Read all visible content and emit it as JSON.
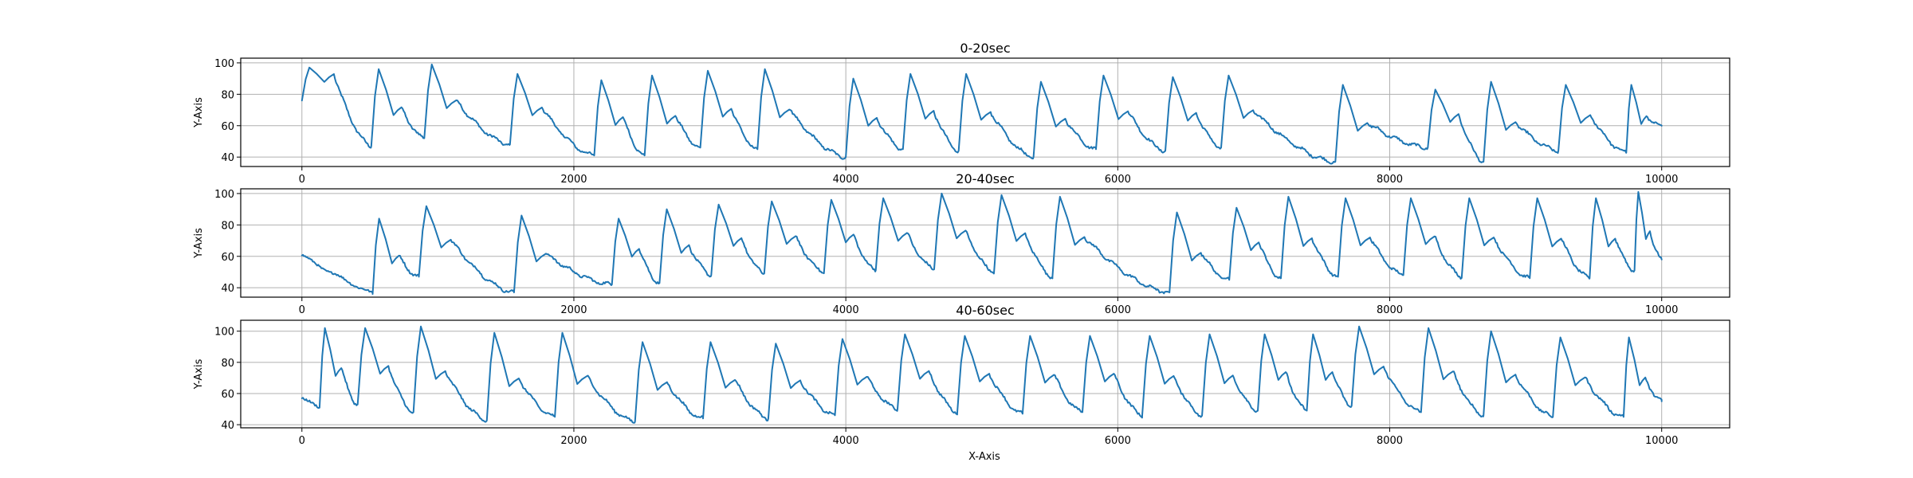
{
  "figure": {
    "xlabel": "X-Axis"
  },
  "colors": {
    "series": "#1f77b4",
    "grid": "#b0b0b0",
    "axes": "#000000"
  },
  "chart_data": [
    {
      "type": "line",
      "title": "0-20sec",
      "ylabel": "Y-Axis",
      "xlim": [
        -450,
        10500
      ],
      "ylim": [
        34,
        103
      ],
      "xticks": [
        0,
        2000,
        4000,
        6000,
        8000,
        10000
      ],
      "xtick_labels": [
        "0",
        "2000",
        "4000",
        "6000",
        "8000",
        "10000"
      ],
      "yticks": [
        40,
        60,
        80,
        100
      ],
      "ytick_labels": [
        "40",
        "60",
        "80",
        "100"
      ],
      "grid": true,
      "series": [
        {
          "beats": [
            0,
            510,
            900,
            1530,
            2150,
            2520,
            2930,
            3350,
            4000,
            4420,
            4830,
            5380,
            5840,
            6350,
            6760,
            7600,
            8280,
            8690,
            9240,
            9740
          ],
          "peaks": [
            97,
            96,
            99,
            93,
            89,
            92,
            95,
            96,
            90,
            93,
            93,
            88,
            92,
            91,
            92,
            86,
            83,
            88,
            86,
            86
          ],
          "troughs": [
            47,
            52,
            48,
            41,
            41,
            46,
            45,
            40,
            45,
            44,
            40,
            45,
            44,
            46,
            37,
            46,
            37,
            44,
            43,
            60
          ],
          "end": 10000
        }
      ]
    },
    {
      "type": "line",
      "title": "20-40sec",
      "ylabel": "Y-Axis",
      "xlim": [
        -450,
        10500
      ],
      "ylim": [
        34,
        103
      ],
      "xticks": [
        0,
        2000,
        4000,
        6000,
        8000,
        10000
      ],
      "xtick_labels": [
        "0",
        "2000",
        "4000",
        "6000",
        "8000",
        "10000"
      ],
      "yticks": [
        40,
        60,
        80,
        100
      ],
      "ytick_labels": [
        "40",
        "60",
        "80",
        "100"
      ],
      "grid": true,
      "series": [
        {
          "start": 61,
          "beats": [
            520,
            860,
            1560,
            2280,
            2630,
            3010,
            3400,
            3840,
            4220,
            4650,
            5090,
            5520,
            6380,
            6820,
            7200,
            7620,
            8100,
            8530,
            9030,
            9470,
            9800
          ],
          "peaks": [
            84,
            92,
            86,
            84,
            90,
            93,
            95,
            96,
            97,
            100,
            99,
            98,
            88,
            91,
            98,
            97,
            97,
            97,
            97,
            97,
            101
          ],
          "pre_troughs": [
            36,
            47,
            37,
            42,
            43,
            48,
            49,
            50,
            51,
            52,
            50,
            47,
            37,
            45,
            46,
            47,
            48,
            47,
            46,
            46,
            51
          ],
          "end": 10000,
          "end_value": 58
        }
      ]
    },
    {
      "type": "line",
      "title": "40-60sec",
      "ylabel": "Y-Axis",
      "xlim": [
        -450,
        10500
      ],
      "ylim": [
        38,
        107
      ],
      "xticks": [
        0,
        2000,
        4000,
        6000,
        8000,
        10000
      ],
      "xtick_labels": [
        "0",
        "2000",
        "4000",
        "6000",
        "8000",
        "10000"
      ],
      "yticks": [
        40,
        60,
        80,
        100
      ],
      "ytick_labels": [
        "40",
        "60",
        "80",
        "100"
      ],
      "grid": true,
      "series": [
        {
          "start": 57,
          "beats": [
            130,
            410,
            820,
            1360,
            1860,
            2450,
            2950,
            3430,
            3920,
            4380,
            4820,
            5300,
            5740,
            6180,
            6620,
            7030,
            7390,
            7720,
            8230,
            8690,
            9200,
            9720
          ],
          "peaks": [
            102,
            102,
            103,
            99,
            99,
            93,
            93,
            92,
            95,
            98,
            97,
            97,
            97,
            97,
            98,
            98,
            98,
            103,
            102,
            100,
            96,
            96
          ],
          "pre_troughs": [
            51,
            53,
            48,
            43,
            45,
            42,
            44,
            44,
            46,
            50,
            48,
            47,
            48,
            46,
            46,
            49,
            49,
            52,
            48,
            46,
            45,
            45
          ],
          "end": 10000,
          "end_value": 55
        }
      ]
    }
  ]
}
